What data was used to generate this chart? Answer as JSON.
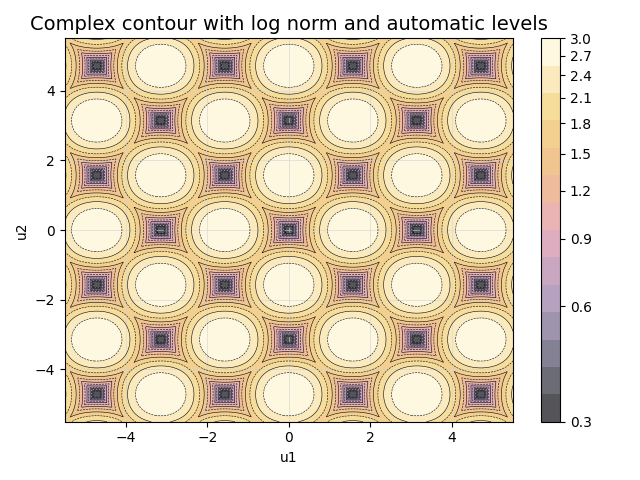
{
  "title": "Complex contour with log norm and automatic levels",
  "xlabel": "u1",
  "ylabel": "u2",
  "xlim": [
    -5.5,
    5.5
  ],
  "ylim": [
    -5.5,
    5.5
  ],
  "u1_range": [
    -5.5,
    5.5
  ],
  "u2_range": [
    -5.5,
    5.5
  ],
  "n_points": 600,
  "vmin": 0.3,
  "vmax": 3.0,
  "colorbar_ticks": [
    0.3,
    0.6,
    0.9,
    1.2,
    1.5,
    1.8,
    2.1,
    2.4,
    2.7,
    3.0
  ],
  "cmap": "gist_heat_r",
  "n_levels": 15,
  "grid": true,
  "title_fontsize": 14
}
